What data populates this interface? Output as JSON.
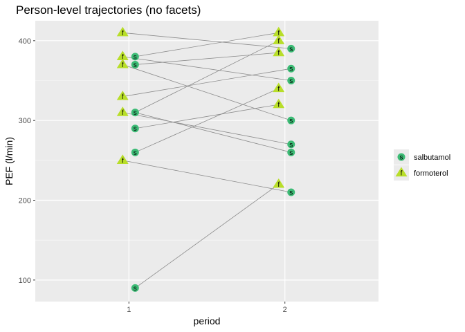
{
  "chart_data": {
    "type": "scatter",
    "title": "Person-level trajectories (no facets)",
    "xlabel": "period",
    "ylabel": "PEF (l/min)",
    "x_categories": [
      "1",
      "2"
    ],
    "xlim": [
      0.4,
      2.6
    ],
    "ylim": [
      73,
      425
    ],
    "y_ticks": [
      100,
      200,
      300,
      400
    ],
    "grid": true,
    "legend_position": "right",
    "series": [
      {
        "name": "salbutamol",
        "marker": "circle",
        "marker_label": "s",
        "color": "#3CBB75"
      },
      {
        "name": "formoterol",
        "marker": "triangle",
        "marker_label": "f",
        "color": "#B8DE29"
      }
    ],
    "trajectories": [
      {
        "period1": {
          "treatment": "formoterol",
          "pef": 410
        },
        "period2": {
          "treatment": "salbutamol",
          "pef": 390
        }
      },
      {
        "period1": {
          "treatment": "salbutamol",
          "pef": 380
        },
        "period2": {
          "treatment": "formoterol",
          "pef": 410
        }
      },
      {
        "period1": {
          "treatment": "formoterol",
          "pef": 380
        },
        "period2": {
          "treatment": "salbutamol",
          "pef": 350
        }
      },
      {
        "period1": {
          "treatment": "formoterol",
          "pef": 370
        },
        "period2": {
          "treatment": "salbutamol",
          "pef": 300
        }
      },
      {
        "period1": {
          "treatment": "salbutamol",
          "pef": 370
        },
        "period2": {
          "treatment": "formoterol",
          "pef": 385
        }
      },
      {
        "period1": {
          "treatment": "formoterol",
          "pef": 330
        },
        "period2": {
          "treatment": "salbutamol",
          "pef": 365
        }
      },
      {
        "period1": {
          "treatment": "salbutamol",
          "pef": 310
        },
        "period2": {
          "treatment": "formoterol",
          "pef": 400
        }
      },
      {
        "period1": {
          "treatment": "formoterol",
          "pef": 310
        },
        "period2": {
          "treatment": "salbutamol",
          "pef": 270
        }
      },
      {
        "period1": {
          "treatment": "salbutamol",
          "pef": 310
        },
        "period2": {
          "treatment": "salbutamol",
          "pef": 260
        }
      },
      {
        "period1": {
          "treatment": "salbutamol",
          "pef": 290
        },
        "period2": {
          "treatment": "formoterol",
          "pef": 320
        }
      },
      {
        "period1": {
          "treatment": "salbutamol",
          "pef": 260
        },
        "period2": {
          "treatment": "formoterol",
          "pef": 340
        }
      },
      {
        "period1": {
          "treatment": "formoterol",
          "pef": 250
        },
        "period2": {
          "treatment": "salbutamol",
          "pef": 210
        }
      },
      {
        "period1": {
          "treatment": "salbutamol",
          "pef": 90
        },
        "period2": {
          "treatment": "formoterol",
          "pef": 220
        }
      }
    ]
  }
}
